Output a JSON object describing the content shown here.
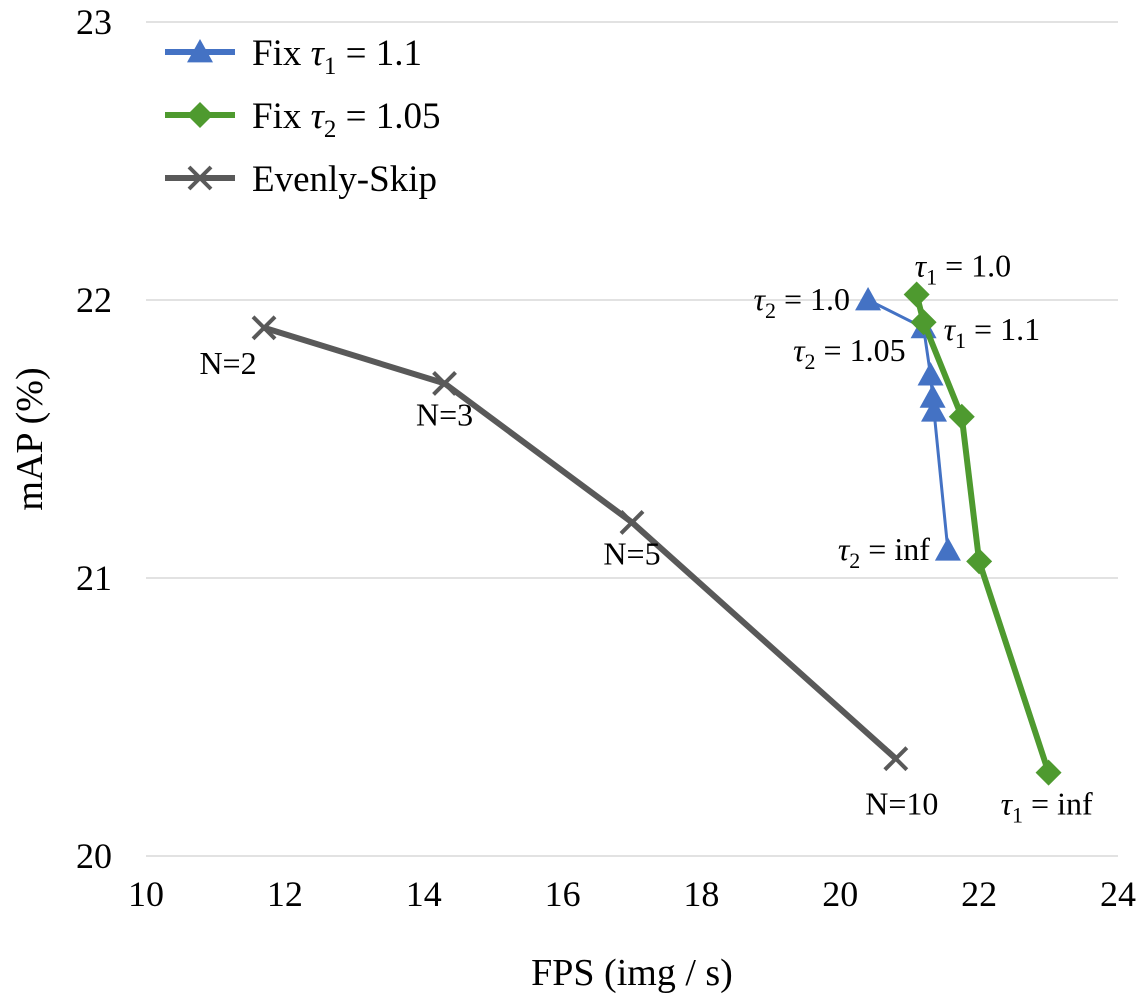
{
  "chart_data": {
    "type": "line",
    "xlabel": "FPS (img / s)",
    "ylabel": "mAP (%)",
    "xlim": [
      10,
      24
    ],
    "ylim": [
      20,
      23
    ],
    "xticks": [
      "10",
      "12",
      "14",
      "16",
      "18",
      "20",
      "22",
      "24"
    ],
    "yticks": [
      "20",
      "21",
      "22",
      "23"
    ],
    "grid": "horizontal",
    "legend_position": "top-left",
    "legend": [
      {
        "label": "Fix  τ",
        "sub": "1",
        "tail": " = 1.1"
      },
      {
        "label": "Fix  τ",
        "sub": "2",
        "tail": " = 1.05"
      },
      {
        "label": "Evenly-Skip",
        "sub": "",
        "tail": ""
      }
    ],
    "series": [
      {
        "name": "Fix tau1 = 1.1",
        "color": "#4472C4",
        "marker": "triangle",
        "points": [
          [
            20.4,
            22.0
          ],
          [
            21.2,
            21.9
          ],
          [
            21.3,
            21.73
          ],
          [
            21.33,
            21.65
          ],
          [
            21.35,
            21.6
          ],
          [
            21.55,
            21.1
          ]
        ]
      },
      {
        "name": "Fix tau2 = 1.05",
        "color": "#4E9A2F",
        "marker": "diamond",
        "points": [
          [
            21.1,
            22.02
          ],
          [
            21.2,
            21.92
          ],
          [
            21.75,
            21.58
          ],
          [
            22.0,
            21.06
          ],
          [
            23.0,
            20.3
          ]
        ]
      },
      {
        "name": "Evenly-Skip",
        "color": "#595959",
        "marker": "x",
        "points": [
          [
            11.7,
            21.9
          ],
          [
            14.3,
            21.7
          ],
          [
            17.0,
            21.2
          ],
          [
            20.8,
            20.35
          ]
        ]
      }
    ],
    "annotations": [
      {
        "text": "N=2",
        "x": 11.7,
        "y": 21.9,
        "anchor": "below"
      },
      {
        "text": "N=3",
        "x": 14.3,
        "y": 21.7,
        "anchor": "below"
      },
      {
        "text": "N=5",
        "x": 17.0,
        "y": 21.2,
        "anchor": "below"
      },
      {
        "text": "N=10",
        "x": 20.8,
        "y": 20.35,
        "anchor": "below"
      },
      {
        "prefix": "τ",
        "sub": "2",
        "tail": " = 1.0",
        "x": 20.4,
        "y": 22.0,
        "anchor": "left"
      },
      {
        "prefix": "τ",
        "sub": "2",
        "tail": " = 1.05",
        "x": 21.2,
        "y": 21.9,
        "anchor": "below-left"
      },
      {
        "prefix": "τ",
        "sub": "2",
        "tail": " = inf",
        "x": 21.55,
        "y": 21.1,
        "anchor": "left"
      },
      {
        "prefix": "τ",
        "sub": "1",
        "tail": " = 1.0",
        "x": 21.1,
        "y": 22.02,
        "anchor": "above"
      },
      {
        "prefix": "τ",
        "sub": "1",
        "tail": " = 1.1",
        "x": 21.2,
        "y": 21.9,
        "anchor": "right"
      },
      {
        "prefix": "τ",
        "sub": "1",
        "tail": " = inf",
        "x": 23.0,
        "y": 20.3,
        "anchor": "below-right"
      }
    ]
  }
}
